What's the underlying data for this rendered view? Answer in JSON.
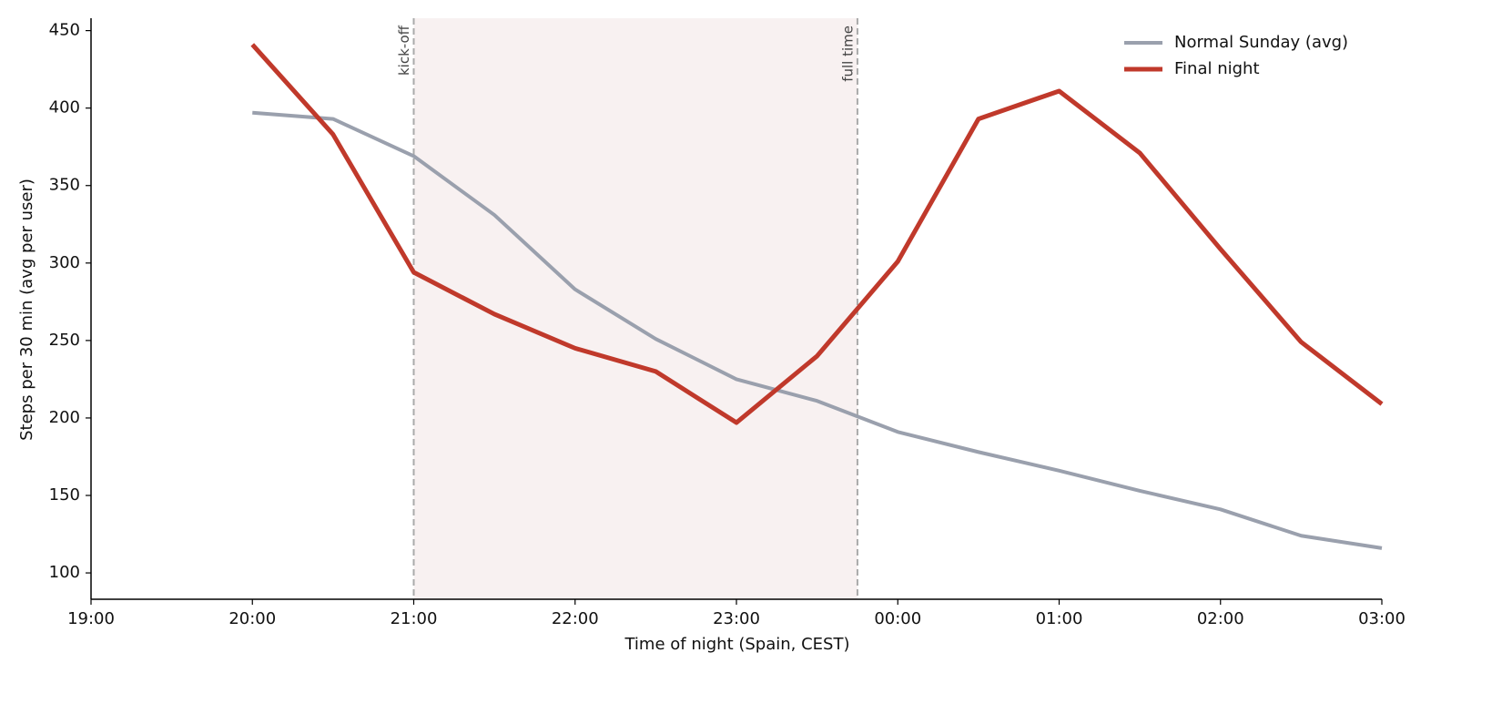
{
  "chart_data": {
    "type": "line",
    "xlabel": "Time of night (Spain, CEST)",
    "ylabel": "Steps per 30 min (avg per user)",
    "x": [
      "20:00",
      "20:30",
      "21:00",
      "21:30",
      "22:00",
      "22:30",
      "23:00",
      "23:30",
      "00:00",
      "00:30",
      "01:00",
      "01:30",
      "02:00",
      "02:30",
      "03:00"
    ],
    "series": [
      {
        "name": "Normal Sunday (avg)",
        "color": "#9aa0ad",
        "values": [
          397,
          393,
          369,
          331,
          283,
          251,
          225,
          211,
          191,
          178,
          166,
          153,
          141,
          124,
          116
        ]
      },
      {
        "name": "Final night",
        "color": "#c0392b",
        "values": [
          441,
          383,
          294,
          267,
          245,
          230,
          197,
          240,
          301,
          393,
          411,
          371,
          309,
          249,
          209
        ]
      }
    ],
    "xlim": [
      "19:00",
      "03:00"
    ],
    "xticks": [
      "19:00",
      "20:00",
      "21:00",
      "22:00",
      "23:00",
      "00:00",
      "01:00",
      "02:00",
      "03:00"
    ],
    "ylim": [
      83,
      458
    ],
    "yticks": [
      100,
      150,
      200,
      250,
      300,
      350,
      400,
      450
    ],
    "annotations": [
      {
        "x": "21:00",
        "label": "kick-off"
      },
      {
        "x": "23:45",
        "label": "full time"
      }
    ],
    "legend": "upper right"
  }
}
